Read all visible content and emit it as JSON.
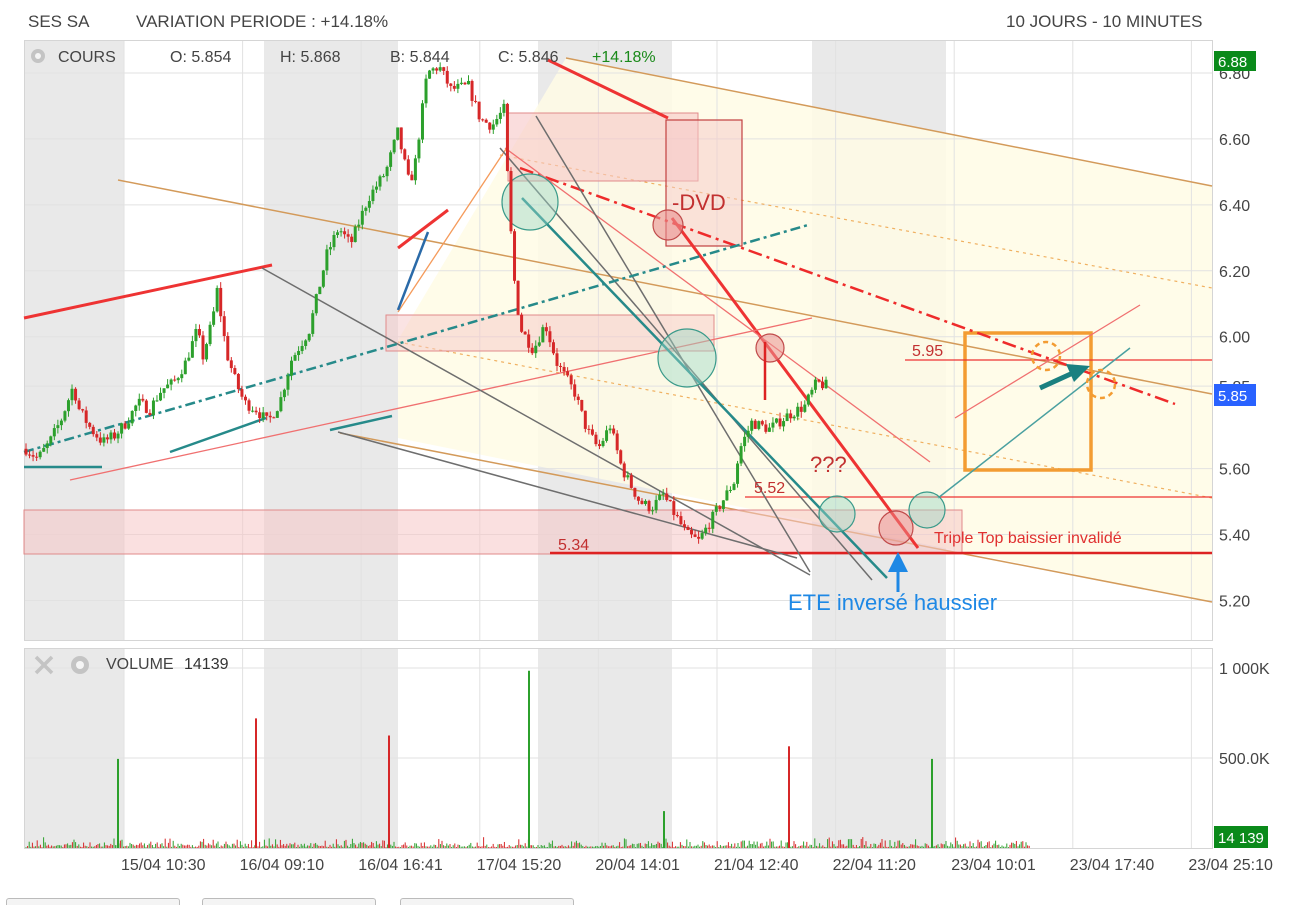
{
  "header": {
    "symbol": "SES SA",
    "variation": "VARIATION PERIODE : +14.18%",
    "range": "10 JOURS - 10 MINUTES"
  },
  "price_panel": {
    "label": "COURS",
    "open": "O: 5.854",
    "high": "H: 5.868",
    "low": "B: 5.844",
    "close": "C: 5.846",
    "change": "+14.18%",
    "high_tag": "6.88",
    "last_tag": "5.85"
  },
  "volume_panel": {
    "label": "VOLUME",
    "value": "14139",
    "last_tag": "14 139"
  },
  "annotations": {
    "dvd": "-DVD",
    "question": "???",
    "level_595": "5.95",
    "level_552": "5.52",
    "level_534": "5.34",
    "triple_top": "Triple Top baissier invalidé",
    "ete": "ETE inversé haussier"
  },
  "colors": {
    "up": "#2ca02c",
    "down": "#d62728",
    "accent_green": "#0a7a1a",
    "accent_blue": "#2962ff",
    "annot_blue": "#1e88e5",
    "annot_orange": "#f39c32"
  },
  "chart_data": {
    "type": "candlestick",
    "price_axis": {
      "ticks": [
        "6.80",
        "6.60",
        "6.40",
        "6.20",
        "6.00",
        "5.85",
        "5.60",
        "5.40",
        "5.20"
      ],
      "ylim": [
        5.08,
        6.9
      ]
    },
    "volume_axis": {
      "ticks": [
        "1 000K",
        "500.0K"
      ],
      "ylim": [
        0,
        1000000
      ]
    },
    "x_ticks": [
      "15/04 10:30",
      "16/04 09:10",
      "16/04 16:41",
      "17/04 15:20",
      "20/04 14:01",
      "21/04 12:40",
      "22/04 11:20",
      "23/04 10:01",
      "23/04 17:40",
      "23/04 25:10"
    ],
    "price_path": [
      [
        0,
        5.66
      ],
      [
        10,
        5.63
      ],
      [
        20,
        5.68
      ],
      [
        30,
        5.75
      ],
      [
        40,
        5.85
      ],
      [
        45,
        5.78
      ],
      [
        55,
        5.72
      ],
      [
        65,
        5.68
      ],
      [
        75,
        5.7
      ],
      [
        85,
        5.74
      ],
      [
        95,
        5.8
      ],
      [
        105,
        5.78
      ],
      [
        115,
        5.84
      ],
      [
        125,
        5.86
      ],
      [
        135,
        5.92
      ],
      [
        145,
        6.02
      ],
      [
        150,
        5.94
      ],
      [
        158,
        6.05
      ],
      [
        162,
        6.14
      ],
      [
        170,
        5.95
      ],
      [
        178,
        5.86
      ],
      [
        185,
        5.8
      ],
      [
        195,
        5.78
      ],
      [
        205,
        5.74
      ],
      [
        215,
        5.8
      ],
      [
        225,
        5.93
      ],
      [
        240,
        6.02
      ],
      [
        255,
        6.25
      ],
      [
        265,
        6.33
      ],
      [
        275,
        6.28
      ],
      [
        290,
        6.42
      ],
      [
        305,
        6.5
      ],
      [
        315,
        6.62
      ],
      [
        325,
        6.46
      ],
      [
        330,
        6.53
      ],
      [
        340,
        6.8
      ],
      [
        350,
        6.82
      ],
      [
        360,
        6.75
      ],
      [
        375,
        6.76
      ],
      [
        385,
        6.66
      ],
      [
        395,
        6.64
      ],
      [
        405,
        6.69
      ],
      [
        410,
        6.36
      ],
      [
        415,
        6.12
      ],
      [
        420,
        6.02
      ],
      [
        430,
        5.96
      ],
      [
        440,
        6.04
      ],
      [
        450,
        5.92
      ],
      [
        465,
        5.83
      ],
      [
        475,
        5.72
      ],
      [
        485,
        5.66
      ],
      [
        495,
        5.73
      ],
      [
        505,
        5.6
      ],
      [
        520,
        5.5
      ],
      [
        530,
        5.48
      ],
      [
        540,
        5.52
      ],
      [
        550,
        5.46
      ],
      [
        560,
        5.4
      ],
      [
        570,
        5.38
      ],
      [
        580,
        5.44
      ],
      [
        590,
        5.5
      ],
      [
        600,
        5.56
      ],
      [
        605,
        5.66
      ],
      [
        615,
        5.74
      ],
      [
        630,
        5.72
      ],
      [
        645,
        5.76
      ],
      [
        660,
        5.79
      ],
      [
        670,
        5.86
      ],
      [
        680,
        5.85
      ]
    ],
    "volume_spikes": [
      {
        "index": 94,
        "value": 495000,
        "color": "up"
      },
      {
        "index": 232,
        "value": 720000,
        "color": "down"
      },
      {
        "index": 365,
        "value": 625000,
        "color": "down"
      },
      {
        "index": 505,
        "value": 985000,
        "color": "up"
      },
      {
        "index": 640,
        "value": 205000,
        "color": "up"
      },
      {
        "index": 765,
        "value": 565000,
        "color": "down"
      },
      {
        "index": 908,
        "value": 495000,
        "color": "up"
      }
    ]
  }
}
